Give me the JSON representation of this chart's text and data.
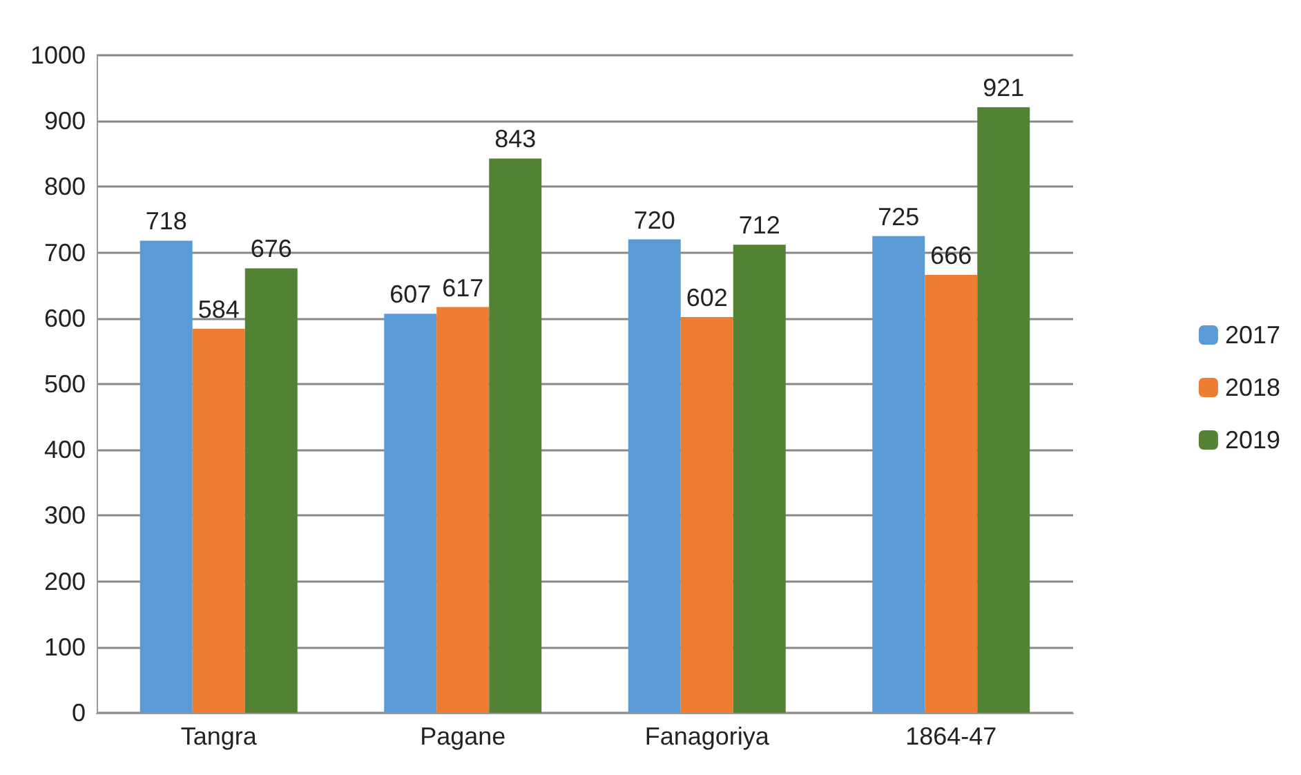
{
  "chart_data": {
    "type": "bar",
    "categories": [
      "Tangra",
      "Pagane",
      "Fanagoriya",
      "1864-47"
    ],
    "series": [
      {
        "name": "2017",
        "color": "#5b9bd5",
        "values": [
          718,
          607,
          720,
          725
        ]
      },
      {
        "name": "2018",
        "color": "#ed7d31",
        "values": [
          584,
          617,
          602,
          666
        ]
      },
      {
        "name": "2019",
        "color": "#548235",
        "values": [
          676,
          843,
          712,
          921
        ]
      }
    ],
    "ylim": [
      0,
      1000
    ],
    "yticks": [
      0,
      100,
      200,
      300,
      400,
      500,
      600,
      700,
      800,
      900,
      1000
    ],
    "grid": "y",
    "legend": "right",
    "data_labels": true
  }
}
